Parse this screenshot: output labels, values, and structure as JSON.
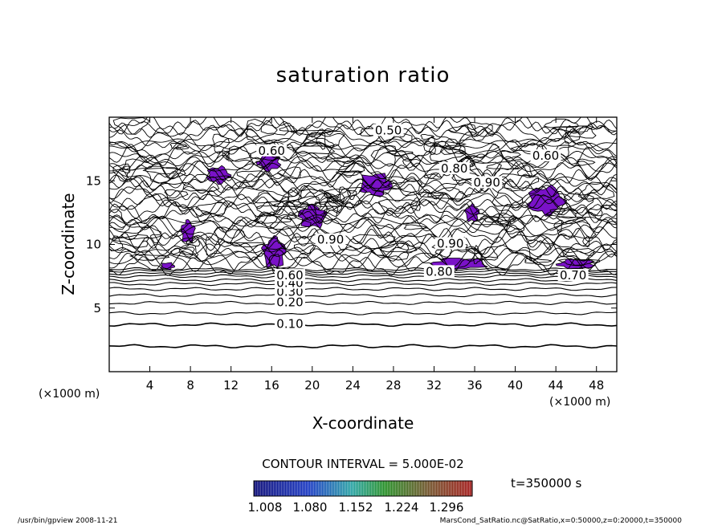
{
  "chart_data": {
    "type": "contour",
    "title": "saturation ratio",
    "xlabel": "X-coordinate",
    "ylabel": "Z-coordinate",
    "x_unit": "(×1000 m)",
    "y_unit": "(×1000 m)",
    "xlim": [
      0,
      50
    ],
    "ylim": [
      0,
      20
    ],
    "x_ticks": [
      4,
      8,
      12,
      16,
      20,
      24,
      28,
      32,
      36,
      40,
      44,
      48
    ],
    "y_ticks": [
      5,
      10,
      15
    ],
    "contour_labels": [
      {
        "text": "0.10",
        "x": 17.8,
        "z": 3.7
      },
      {
        "text": "0.20",
        "x": 17.8,
        "z": 5.4
      },
      {
        "text": "0.30",
        "x": 17.8,
        "z": 6.2
      },
      {
        "text": "0.40",
        "x": 17.8,
        "z": 6.9
      },
      {
        "text": "0.60",
        "x": 17.8,
        "z": 7.5
      },
      {
        "text": "0.80",
        "x": 32.5,
        "z": 7.8
      },
      {
        "text": "0.70",
        "x": 45.7,
        "z": 7.5
      },
      {
        "text": "0.90",
        "x": 21.8,
        "z": 10.3
      },
      {
        "text": "0.90",
        "x": 33.6,
        "z": 10.0
      },
      {
        "text": "0.90",
        "x": 37.2,
        "z": 14.8
      },
      {
        "text": "0.80",
        "x": 34.0,
        "z": 15.9
      },
      {
        "text": "0.50",
        "x": 27.5,
        "z": 18.9
      },
      {
        "text": "0.60",
        "x": 43.0,
        "z": 16.9
      },
      {
        "text": "0.60",
        "x": 16.0,
        "z": 17.3
      }
    ],
    "supersaturated_regions": [
      {
        "x": [
          15.0,
          17.5
        ],
        "z": [
          8.0,
          10.7
        ]
      },
      {
        "x": [
          9.5,
          12.0
        ],
        "z": [
          14.7,
          16.2
        ]
      },
      {
        "x": [
          14.5,
          17.0
        ],
        "z": [
          15.7,
          17.2
        ]
      },
      {
        "x": [
          18.5,
          21.5
        ],
        "z": [
          11.2,
          13.2
        ]
      },
      {
        "x": [
          24.5,
          28.0
        ],
        "z": [
          13.7,
          15.7
        ]
      },
      {
        "x": [
          31.5,
          37.5
        ],
        "z": [
          8.0,
          9.0
        ]
      },
      {
        "x": [
          35.0,
          36.5
        ],
        "z": [
          11.7,
          13.2
        ]
      },
      {
        "x": [
          41.0,
          45.0
        ],
        "z": [
          12.2,
          14.7
        ]
      },
      {
        "x": [
          44.0,
          48.0
        ],
        "z": [
          8.0,
          8.9
        ]
      },
      {
        "x": [
          7.0,
          8.5
        ],
        "z": [
          10.0,
          12.0
        ]
      },
      {
        "x": [
          5.0,
          6.5
        ],
        "z": [
          8.0,
          8.6
        ]
      }
    ],
    "contour_interval_text": "CONTOUR INTERVAL = 5.000E-02",
    "colorbar": {
      "tick_labels": [
        "1.008",
        "1.080",
        "1.152",
        "1.224",
        "1.296"
      ],
      "range": [
        1.008,
        1.296
      ]
    },
    "time_label": "t=350000 s",
    "colors": {
      "contour": "#000000",
      "fill": "#7a12c8",
      "colorbar_low": "#000070",
      "colorbar_mid": "#1c8a1c",
      "colorbar_high": "#a01010"
    }
  },
  "footer": {
    "left": "/usr/bin/gpview   2008-11-21",
    "right": "MarsCond_SatRatio.nc@SatRatio,x=0:50000,z=0:20000,t=350000"
  }
}
